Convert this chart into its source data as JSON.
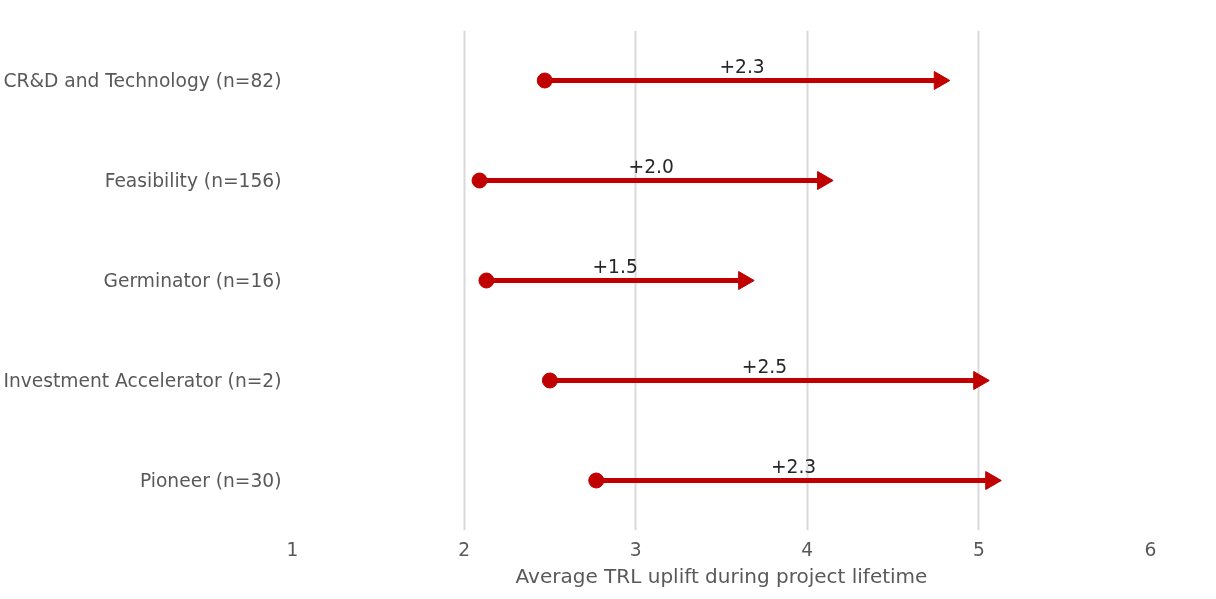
{
  "chart_data": {
    "type": "bar",
    "orientation": "horizontal",
    "categories": [
      "CR&D and Technology (n=82)",
      "Feasibility (n=156)",
      "Germinator (n=16)",
      "Investment Accelerator (n=2)",
      "Pioneer (n=30)"
    ],
    "series": [
      {
        "base": [
          2.47,
          2.09,
          2.13,
          2.5,
          2.77
        ],
        "color": "#c00000",
        "values": [
          2.3,
          2.0,
          1.5,
          2.5,
          2.3
        ],
        "value_labels": [
          "+2.3",
          "+2.0",
          "+1.5",
          "+2.5",
          "+2.3"
        ]
      },
      {
        "type": "scatter",
        "color": "#c00000",
        "marker": "circle",
        "values": [
          2.47,
          2.09,
          2.13,
          2.5,
          2.77
        ]
      },
      {
        "type": "scatter",
        "color": "#c00000",
        "marker": "triangle",
        "values": [
          4.77,
          4.09,
          3.63,
          5.0,
          5.07
        ]
      }
    ],
    "xlabel": "Average TRL uplift during project lifetime",
    "xlim": [
      1,
      6
    ],
    "xticks": [
      1,
      2,
      3,
      4,
      5,
      6
    ],
    "grid": "x"
  }
}
